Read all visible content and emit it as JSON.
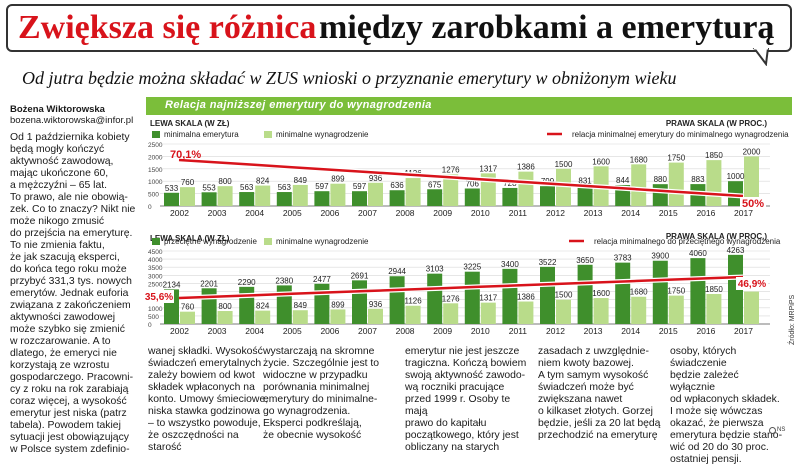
{
  "title_red": "Zwiększa się różnica",
  "title_black": "między zarobkami a emeryturą",
  "subtitle": "Od jutra będzie można składać w ZUS wnioski o przyznanie emerytury w obniżonym wieku",
  "author": {
    "name": "Bożena Wiktorowska",
    "email": "bozena.wiktorowska@infor.pl"
  },
  "chart_header": "Relacja najniższej emerytury do wynagrodzenia",
  "source": "Źródło: MRPiPS",
  "ns_label": "NS",
  "colors": {
    "dark_green": "#3f8f2c",
    "light_green": "#b9dc8a",
    "red": "#d8131b",
    "header_green": "#7bbe3a"
  },
  "chart_data": [
    {
      "type": "bar",
      "title": "",
      "left_axis_label": "LEWA SKALA (W ZŁ)",
      "right_axis_label": "PRAWA SKALA (W PROC.)",
      "legend": {
        "series1": "minimalna emerytura",
        "series2": "minimalne wynagrodzenie",
        "line": "relacja minimalnej emerytury do minimalnego wynagrodzenia"
      },
      "categories": [
        "2002",
        "2003",
        "2004",
        "2005",
        "2006",
        "2007",
        "2008",
        "2009",
        "2010",
        "2011",
        "2012",
        "2013",
        "2014",
        "2015",
        "2016",
        "2017"
      ],
      "series": [
        {
          "name": "minimalna emerytura",
          "values": [
            533,
            553,
            563,
            563,
            597,
            597,
            636,
            675,
            706,
            728,
            799,
            831,
            844,
            880,
            883,
            1000
          ]
        },
        {
          "name": "minimalne wynagrodzenie",
          "values": [
            760,
            800,
            824,
            849,
            899,
            936,
            1126,
            1276,
            1317,
            1386,
            1500,
            1600,
            1680,
            1750,
            1850,
            2000
          ]
        }
      ],
      "line_series": {
        "name": "relacja",
        "start_label": "70,1%",
        "end_label": "50%",
        "start_value": 70.1,
        "end_value": 50.0
      },
      "left_ticks": [
        "2500",
        "2000",
        "1500",
        "1000",
        "500",
        "0"
      ],
      "ylim": [
        0,
        2500
      ]
    },
    {
      "type": "bar",
      "title": "",
      "left_axis_label": "LEWA SKALA (W ZŁ)",
      "right_axis_label": "PRAWA SKALA (W PROC.)",
      "legend": {
        "series1": "przeciętne wynagrodzenie",
        "series2": "minimalne wynagrodzenie",
        "line": "relacja minimalnego do przeciętnego wynagrodzenia"
      },
      "categories": [
        "2002",
        "2003",
        "2004",
        "2005",
        "2006",
        "2007",
        "2008",
        "2009",
        "2010",
        "2011",
        "2012",
        "2013",
        "2014",
        "2015",
        "2016",
        "2017"
      ],
      "series": [
        {
          "name": "przeciętne wynagrodzenie",
          "values": [
            2134,
            2201,
            2290,
            2380,
            2477,
            2691,
            2944,
            3103,
            3225,
            3400,
            3522,
            3650,
            3783,
            3900,
            4060,
            4263
          ]
        },
        {
          "name": "minimalne wynagrodzenie",
          "values": [
            760,
            800,
            824,
            849,
            899,
            936,
            1126,
            1276,
            1317,
            1386,
            1500,
            1600,
            1680,
            1750,
            1850,
            2000
          ]
        }
      ],
      "line_series": {
        "name": "relacja",
        "start_label": "35,6%",
        "end_label": "46,9%",
        "start_value": 35.6,
        "end_value": 46.9
      },
      "left_ticks": [
        "4500",
        "4000",
        "3500",
        "3000",
        "2500",
        "2000",
        "1500",
        "1000",
        "500",
        "0"
      ],
      "ylim": [
        0,
        4500
      ]
    }
  ],
  "columns": [
    "Od 1 października kobiety\nbędą mogły kończyć\naktywność zawodową,\nmając ukończone 60,\na mężczyźni – 65 lat.\nTo prawo, ale nie obowią-\nzek. Co to znaczy? Nikt nie\nmoże nikogo zmusić\ndo przejścia na emeryturę.\nTo nie zmienia faktu,\nże jak szacują eksperci,\ndo końca tego roku może\nprzybyć 331,3 tys. nowych\nemerytów. Jednak euforia\nzwiązana z zakończeniem\naktywności zawodowej\nmoże szybko się zmienić\nw rozczarowanie. A to\ndlatego, że emeryci nie\nkorzystają ze wzrostu\ngospodarczego. Pracowni-\ncy z roku na rok zarabiają\ncoraz więcej, a wysokość\nemerytur jest niska (patrz\ntabela). Powodem takiej\nsytuacji jest obowiązujący\nw Polsce system zdefinio-",
    "wanej składki. Wysokość\nświadczeń emerytalnych\nzależy bowiem od kwot\nskładek wpłaconych na\nkonto. Umowy śmieciowe,\nniska stawka godzinowa\n– to wszystko powoduje,\nże oszczędności na starość",
    "wystarczają na skromne\nżycie. Szczególnie jest to\nwidoczne w przypadku\nporównania minimalnej\nemerytury do minimalne-\ngo wynagrodzenia.\nEksperci podkreślają,\nże obecnie wysokość",
    "emerytur nie jest jeszcze\ntragiczna. Kończą bowiem\nswoją aktywność zawodo-\nwą roczniki pracujące\nprzed 1999 r. Osoby te mają\nprawo do kapitału\npoczątkowego, który jest\nobliczany na starych",
    "zasadach z uwzględnie-\nniem kwoty bazowej.\nA tym samym wysokość\nświadczeń może być\nzwiększana nawet\no kilkaset złotych. Gorzej\nbędzie, jeśli za 20 lat będą\nprzechodzić na emeryturę",
    "osoby, których świadczenie\nbędzie zależeć wyłącznie\nod wpłaconych składek.\nI może się wówczas\nokazać, że pierwsza\nemerytura będzie stano-\nwić od 20 do 30 proc.\nostatniej pensji."
  ]
}
